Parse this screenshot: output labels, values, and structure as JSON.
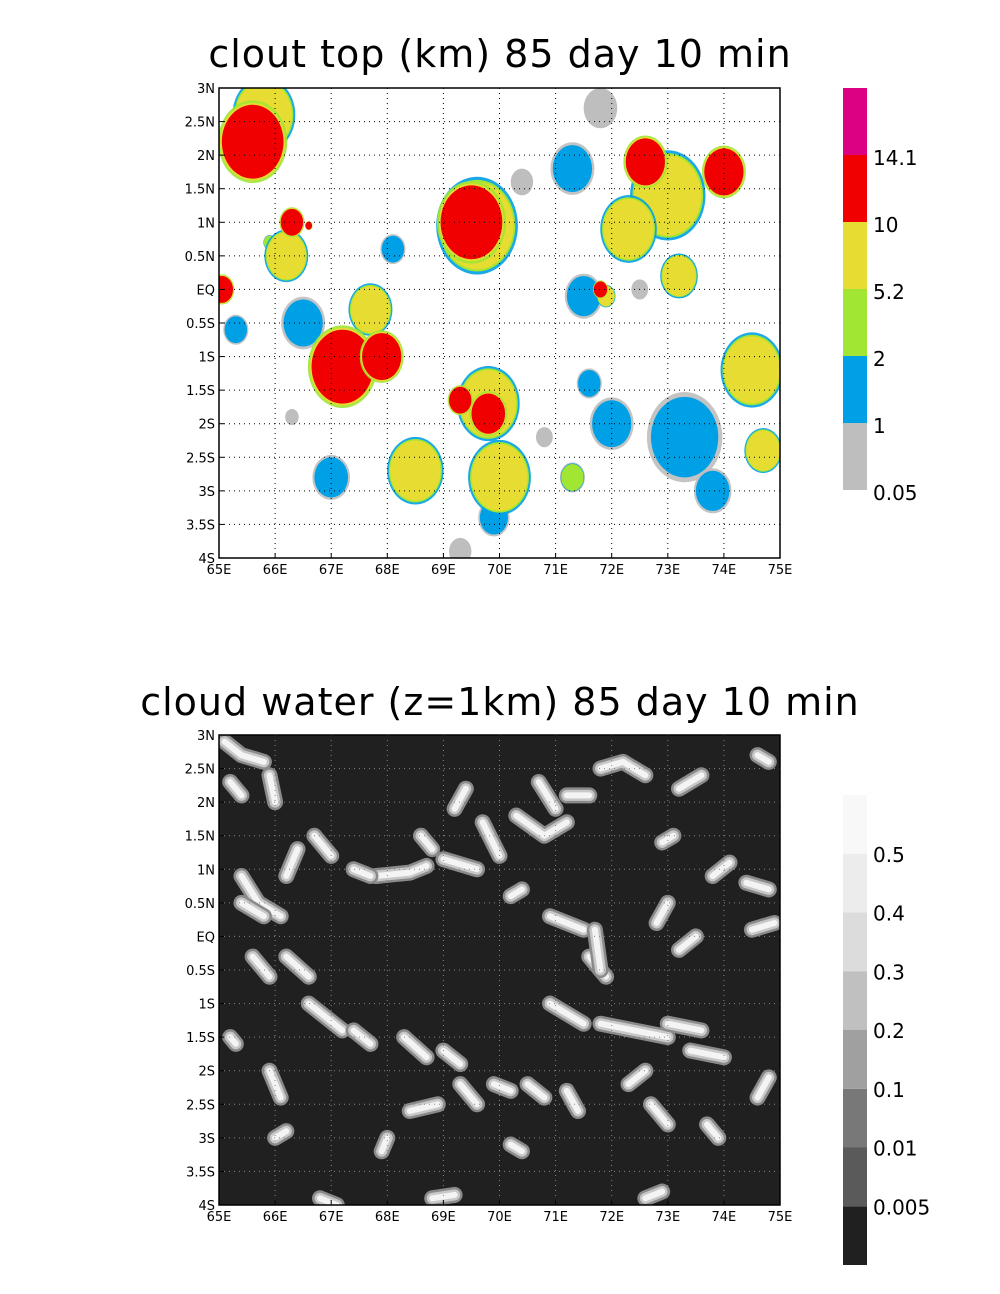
{
  "chart_data": [
    {
      "type": "heatmap",
      "title": "clout top (km) 85 day 10 min",
      "xlim": [
        65,
        75
      ],
      "ylim": [
        -4,
        3
      ],
      "x_ticks": [
        {
          "v": 65,
          "label": "65E"
        },
        {
          "v": 66,
          "label": "66E"
        },
        {
          "v": 67,
          "label": "67E"
        },
        {
          "v": 68,
          "label": "68E"
        },
        {
          "v": 69,
          "label": "69E"
        },
        {
          "v": 70,
          "label": "70E"
        },
        {
          "v": 71,
          "label": "71E"
        },
        {
          "v": 72,
          "label": "72E"
        },
        {
          "v": 73,
          "label": "73E"
        },
        {
          "v": 74,
          "label": "74E"
        },
        {
          "v": 75,
          "label": "75E"
        }
      ],
      "y_ticks": [
        {
          "v": 3,
          "label": "3N"
        },
        {
          "v": 2.5,
          "label": "2.5N"
        },
        {
          "v": 2,
          "label": "2N"
        },
        {
          "v": 1.5,
          "label": "1.5N"
        },
        {
          "v": 1,
          "label": "1N"
        },
        {
          "v": 0.5,
          "label": "0.5N"
        },
        {
          "v": 0,
          "label": "EQ"
        },
        {
          "v": -0.5,
          "label": "0.5S"
        },
        {
          "v": -1,
          "label": "1S"
        },
        {
          "v": -1.5,
          "label": "1.5S"
        },
        {
          "v": -2,
          "label": "2S"
        },
        {
          "v": -2.5,
          "label": "2.5S"
        },
        {
          "v": -3,
          "label": "3S"
        },
        {
          "v": -3.5,
          "label": "3.5S"
        },
        {
          "v": -4,
          "label": "4S"
        }
      ],
      "background": "#ffffff",
      "grid": "dotted",
      "colorbar": {
        "colors": [
          "#bebebe",
          "#00a0e6",
          "#a0e632",
          "#e6dc32",
          "#f00000",
          "#dc0082"
        ],
        "labels": [
          "0.05",
          "1",
          "2",
          "5.2",
          "10",
          "14.1"
        ]
      },
      "blobs": [
        {
          "lon": 65.6,
          "lat": 2.2,
          "r": 0.55,
          "level": 4
        },
        {
          "lon": 66.3,
          "lat": 1.0,
          "r": 0.2,
          "level": 4
        },
        {
          "lon": 69.5,
          "lat": 1.0,
          "r": 0.55,
          "level": 4
        },
        {
          "lon": 69.6,
          "lat": 0.95,
          "r": 0.65,
          "level": 3
        },
        {
          "lon": 67.2,
          "lat": -1.15,
          "r": 0.55,
          "level": 4
        },
        {
          "lon": 67.9,
          "lat": -1.0,
          "r": 0.35,
          "level": 4
        },
        {
          "lon": 69.8,
          "lat": -1.85,
          "r": 0.3,
          "level": 4
        },
        {
          "lon": 69.3,
          "lat": -1.65,
          "r": 0.2,
          "level": 4
        },
        {
          "lon": 72.6,
          "lat": 1.9,
          "r": 0.35,
          "level": 4
        },
        {
          "lon": 74.0,
          "lat": 1.75,
          "r": 0.35,
          "level": 4
        },
        {
          "lon": 71.8,
          "lat": 0.0,
          "r": 0.12,
          "level": 4
        },
        {
          "lon": 65.05,
          "lat": 0.0,
          "r": 0.2,
          "level": 4
        },
        {
          "lon": 66.6,
          "lat": 0.95,
          "r": 0.06,
          "level": 4
        },
        {
          "lon": 73.0,
          "lat": 1.4,
          "r": 0.6,
          "level": 3
        },
        {
          "lon": 74.5,
          "lat": -1.2,
          "r": 0.5,
          "level": 3
        },
        {
          "lon": 70.0,
          "lat": -2.8,
          "r": 0.5,
          "level": 3
        },
        {
          "lon": 68.5,
          "lat": -2.7,
          "r": 0.45,
          "level": 3
        },
        {
          "lon": 67.7,
          "lat": -0.3,
          "r": 0.35,
          "level": 3
        },
        {
          "lon": 65.8,
          "lat": 2.6,
          "r": 0.5,
          "level": 3
        },
        {
          "lon": 66.2,
          "lat": 0.5,
          "r": 0.35,
          "level": 3
        },
        {
          "lon": 72.3,
          "lat": 0.9,
          "r": 0.45,
          "level": 3
        },
        {
          "lon": 73.2,
          "lat": 0.2,
          "r": 0.3,
          "level": 3
        },
        {
          "lon": 74.7,
          "lat": -2.4,
          "r": 0.3,
          "level": 3
        },
        {
          "lon": 69.8,
          "lat": -1.7,
          "r": 0.5,
          "level": 3
        },
        {
          "lon": 73.3,
          "lat": -2.2,
          "r": 0.6,
          "level": 1
        },
        {
          "lon": 72.0,
          "lat": -2.0,
          "r": 0.35,
          "level": 1
        },
        {
          "lon": 66.5,
          "lat": -0.5,
          "r": 0.35,
          "level": 1
        },
        {
          "lon": 71.3,
          "lat": 1.8,
          "r": 0.35,
          "level": 1
        },
        {
          "lon": 67.0,
          "lat": -2.8,
          "r": 0.3,
          "level": 1
        },
        {
          "lon": 71.5,
          "lat": -0.1,
          "r": 0.3,
          "level": 1
        },
        {
          "lon": 73.8,
          "lat": -3.0,
          "r": 0.3,
          "level": 1
        },
        {
          "lon": 69.9,
          "lat": -3.4,
          "r": 0.25,
          "level": 1
        },
        {
          "lon": 68.1,
          "lat": 0.6,
          "r": 0.2,
          "level": 1
        },
        {
          "lon": 65.3,
          "lat": -0.6,
          "r": 0.2,
          "level": 1
        },
        {
          "lon": 71.6,
          "lat": -1.4,
          "r": 0.2,
          "level": 1
        },
        {
          "lon": 71.3,
          "lat": -2.8,
          "r": 0.2,
          "level": 2
        },
        {
          "lon": 65.9,
          "lat": 0.7,
          "r": 0.1,
          "level": 2
        },
        {
          "lon": 71.9,
          "lat": -0.1,
          "r": 0.15,
          "level": 3
        },
        {
          "lon": 71.8,
          "lat": 2.7,
          "r": 0.3,
          "level": 0
        },
        {
          "lon": 70.4,
          "lat": 1.6,
          "r": 0.2,
          "level": 0
        },
        {
          "lon": 69.3,
          "lat": -3.9,
          "r": 0.2,
          "level": 0
        },
        {
          "lon": 72.5,
          "lat": 0.0,
          "r": 0.15,
          "level": 0
        },
        {
          "lon": 66.3,
          "lat": -1.9,
          "r": 0.12,
          "level": 0
        },
        {
          "lon": 70.8,
          "lat": -2.2,
          "r": 0.15,
          "level": 0
        }
      ]
    },
    {
      "type": "heatmap",
      "title": "cloud water (z=1km) 85 day 10 min",
      "xlim": [
        65,
        75
      ],
      "ylim": [
        -4,
        3
      ],
      "x_ticks": [
        {
          "v": 65,
          "label": "65E"
        },
        {
          "v": 66,
          "label": "66E"
        },
        {
          "v": 67,
          "label": "67E"
        },
        {
          "v": 68,
          "label": "68E"
        },
        {
          "v": 69,
          "label": "69E"
        },
        {
          "v": 70,
          "label": "70E"
        },
        {
          "v": 71,
          "label": "71E"
        },
        {
          "v": 72,
          "label": "72E"
        },
        {
          "v": 73,
          "label": "73E"
        },
        {
          "v": 74,
          "label": "74E"
        },
        {
          "v": 75,
          "label": "75E"
        }
      ],
      "y_ticks": [
        {
          "v": 3,
          "label": "3N"
        },
        {
          "v": 2.5,
          "label": "2.5N"
        },
        {
          "v": 2,
          "label": "2N"
        },
        {
          "v": 1.5,
          "label": "1.5N"
        },
        {
          "v": 1,
          "label": "1N"
        },
        {
          "v": 0.5,
          "label": "0.5N"
        },
        {
          "v": 0,
          "label": "EQ"
        },
        {
          "v": -0.5,
          "label": "0.5S"
        },
        {
          "v": -1,
          "label": "1S"
        },
        {
          "v": -1.5,
          "label": "1.5S"
        },
        {
          "v": -2,
          "label": "2S"
        },
        {
          "v": -2.5,
          "label": "2.5S"
        },
        {
          "v": -3,
          "label": "3S"
        },
        {
          "v": -3.5,
          "label": "3.5S"
        },
        {
          "v": -4,
          "label": "4S"
        }
      ],
      "background": "#202020",
      "grid": "dotted",
      "colorbar": {
        "colors": [
          "#202020",
          "#5a5a5a",
          "#787878",
          "#a0a0a0",
          "#c0c0c0",
          "#dcdcdc",
          "#ececec",
          "#f8f8f8"
        ],
        "labels": [
          "0.005",
          "0.01",
          "0.1",
          "0.2",
          "0.3",
          "0.4",
          "0.5"
        ]
      },
      "streaks": [
        [
          [
            65.1,
            2.9
          ],
          [
            65.4,
            2.7
          ],
          [
            65.8,
            2.6
          ]
        ],
        [
          [
            65.2,
            2.3
          ],
          [
            65.4,
            2.1
          ]
        ],
        [
          [
            65.9,
            2.4
          ],
          [
            66.0,
            2.0
          ]
        ],
        [
          [
            65.4,
            0.9
          ],
          [
            65.7,
            0.5
          ],
          [
            66.1,
            0.3
          ]
        ],
        [
          [
            66.4,
            1.3
          ],
          [
            66.2,
            0.9
          ]
        ],
        [
          [
            67.0,
            1.2
          ],
          [
            66.7,
            1.5
          ]
        ],
        [
          [
            67.8,
            0.9
          ],
          [
            68.4,
            0.95
          ],
          [
            68.7,
            1.05
          ]
        ],
        [
          [
            69.0,
            1.15
          ],
          [
            69.6,
            1.0
          ]
        ],
        [
          [
            69.7,
            1.7
          ],
          [
            70.0,
            1.2
          ]
        ],
        [
          [
            68.6,
            1.5
          ],
          [
            68.8,
            1.3
          ]
        ],
        [
          [
            67.4,
            1.0
          ],
          [
            67.7,
            0.9
          ]
        ],
        [
          [
            69.2,
            1.9
          ],
          [
            69.4,
            2.2
          ]
        ],
        [
          [
            70.3,
            1.8
          ],
          [
            70.8,
            1.5
          ],
          [
            71.2,
            1.7
          ]
        ],
        [
          [
            71.2,
            2.1
          ],
          [
            71.6,
            2.1
          ]
        ],
        [
          [
            71.8,
            2.5
          ],
          [
            72.2,
            2.6
          ],
          [
            72.6,
            2.4
          ]
        ],
        [
          [
            71.0,
            1.9
          ],
          [
            70.7,
            2.3
          ]
        ],
        [
          [
            72.9,
            1.4
          ],
          [
            73.1,
            1.5
          ]
        ],
        [
          [
            73.6,
            2.4
          ],
          [
            73.2,
            2.2
          ]
        ],
        [
          [
            74.6,
            2.7
          ],
          [
            74.8,
            2.6
          ]
        ],
        [
          [
            74.4,
            0.8
          ],
          [
            74.8,
            0.7
          ]
        ],
        [
          [
            74.1,
            1.1
          ],
          [
            73.8,
            0.9
          ]
        ],
        [
          [
            65.4,
            0.5
          ],
          [
            65.8,
            0.3
          ]
        ],
        [
          [
            65.6,
            -0.3
          ],
          [
            65.9,
            -0.6
          ]
        ],
        [
          [
            66.2,
            -0.3
          ],
          [
            66.6,
            -0.6
          ]
        ],
        [
          [
            66.6,
            -1.0
          ],
          [
            67.2,
            -1.4
          ]
        ],
        [
          [
            67.4,
            -1.4
          ],
          [
            67.7,
            -1.6
          ]
        ],
        [
          [
            68.3,
            -1.5
          ],
          [
            68.7,
            -1.8
          ]
        ],
        [
          [
            69.0,
            -1.7
          ],
          [
            69.3,
            -1.9
          ]
        ],
        [
          [
            69.9,
            -2.2
          ],
          [
            70.2,
            -2.3
          ]
        ],
        [
          [
            71.6,
            -0.3
          ],
          [
            71.9,
            -0.6
          ]
        ],
        [
          [
            70.9,
            0.3
          ],
          [
            71.5,
            0.1
          ]
        ],
        [
          [
            71.7,
            0.1
          ],
          [
            71.8,
            -0.5
          ]
        ],
        [
          [
            70.9,
            -1.0
          ],
          [
            71.5,
            -1.3
          ]
        ],
        [
          [
            71.8,
            -1.3
          ],
          [
            72.4,
            -1.4
          ],
          [
            73.0,
            -1.5
          ]
        ],
        [
          [
            73.0,
            -1.3
          ],
          [
            73.6,
            -1.4
          ]
        ],
        [
          [
            73.4,
            -1.7
          ],
          [
            74.0,
            -1.8
          ]
        ],
        [
          [
            72.7,
            -2.5
          ],
          [
            73.0,
            -2.8
          ]
        ],
        [
          [
            73.7,
            -2.8
          ],
          [
            73.9,
            -3.0
          ]
        ],
        [
          [
            74.6,
            -2.4
          ],
          [
            74.8,
            -2.1
          ]
        ],
        [
          [
            68.4,
            -2.6
          ],
          [
            68.9,
            -2.5
          ]
        ],
        [
          [
            69.3,
            -2.2
          ],
          [
            69.6,
            -2.5
          ]
        ],
        [
          [
            70.5,
            -2.2
          ],
          [
            70.8,
            -2.4
          ]
        ],
        [
          [
            65.9,
            -2.0
          ],
          [
            66.1,
            -2.4
          ]
        ],
        [
          [
            71.2,
            -2.3
          ],
          [
            71.4,
            -2.6
          ]
        ],
        [
          [
            72.3,
            -2.2
          ],
          [
            72.6,
            -2.0
          ]
        ],
        [
          [
            73.2,
            -0.2
          ],
          [
            73.5,
            0.0
          ]
        ],
        [
          [
            74.5,
            0.1
          ],
          [
            74.9,
            0.2
          ]
        ],
        [
          [
            72.8,
            0.2
          ],
          [
            73.0,
            0.5
          ]
        ],
        [
          [
            67.9,
            -3.2
          ],
          [
            68.0,
            -3.0
          ]
        ],
        [
          [
            66.0,
            -3.0
          ],
          [
            66.2,
            -2.9
          ]
        ],
        [
          [
            70.2,
            -3.1
          ],
          [
            70.4,
            -3.2
          ]
        ],
        [
          [
            66.8,
            -3.9
          ],
          [
            67.1,
            -4.0
          ]
        ],
        [
          [
            68.8,
            -3.9
          ],
          [
            69.2,
            -3.85
          ]
        ],
        [
          [
            72.6,
            -3.9
          ],
          [
            72.9,
            -3.8
          ]
        ],
        [
          [
            70.2,
            0.6
          ],
          [
            70.4,
            0.7
          ]
        ],
        [
          [
            65.2,
            -1.5
          ],
          [
            65.3,
            -1.6
          ]
        ]
      ]
    }
  ]
}
